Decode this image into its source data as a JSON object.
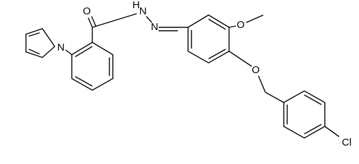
{
  "atoms": {
    "carbonyl_o": "O",
    "pyrrole_n": "N",
    "amide_h": "H",
    "amide_n": "N",
    "imine_n": "N",
    "methoxy_o": "O",
    "ether_o": "O",
    "chlorine": "Cl"
  }
}
